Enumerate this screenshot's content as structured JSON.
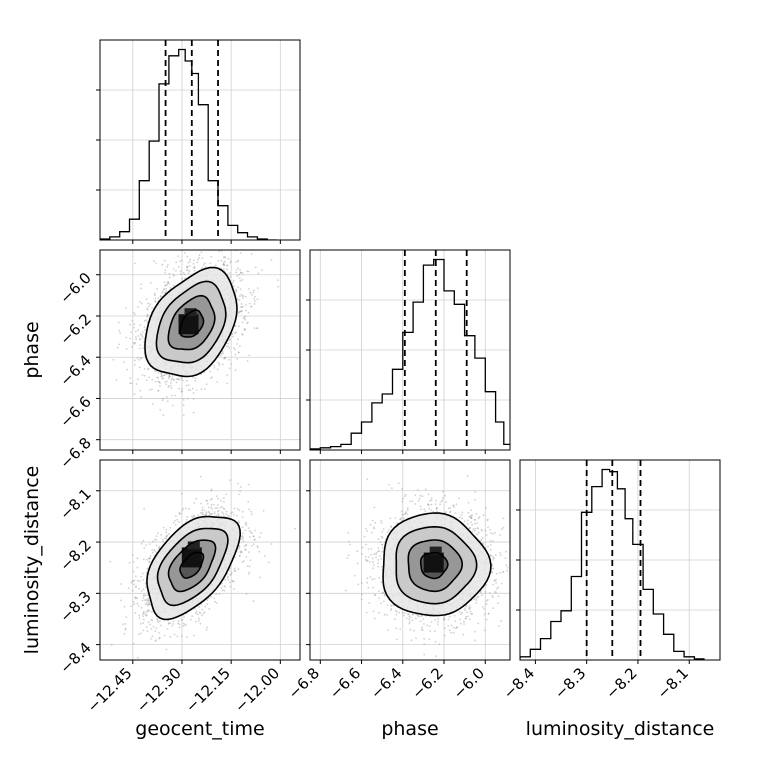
{
  "chart_data": {
    "type": "corner",
    "parameters": [
      "geocent_time",
      "phase",
      "luminosity_distance"
    ],
    "axis_labels": {
      "x": [
        "geocent_time",
        "phase",
        "luminosity_distance"
      ],
      "y": [
        "phase",
        "luminosity_distance"
      ]
    },
    "grid": true,
    "ranges": {
      "geocent_time": [
        -12.55,
        -11.94
      ],
      "phase": [
        -6.85,
        -5.88
      ],
      "luminosity_distance": [
        -8.43,
        -8.04
      ]
    },
    "ticks": {
      "geocent_time": {
        "values": [
          -12.45,
          -12.3,
          -12.15,
          -12.0
        ],
        "labels": [
          "−12.45",
          "−12.30",
          "−12.15",
          "−12.00"
        ]
      },
      "phase": {
        "values": [
          -6.8,
          -6.6,
          -6.4,
          -6.2,
          -6.0
        ],
        "labels": [
          "−6.8",
          "−6.6",
          "−6.4",
          "−6.2",
          "−6.0"
        ]
      },
      "luminosity_distance": {
        "values": [
          -8.4,
          -8.3,
          -8.2,
          -8.1
        ],
        "labels": [
          "−8.4",
          "−8.3",
          "−8.2",
          "−8.1"
        ]
      }
    },
    "quantiles": {
      "geocent_time": [
        -12.35,
        -12.27,
        -12.19
      ],
      "phase": [
        -6.39,
        -6.24,
        -6.09
      ],
      "luminosity_distance": [
        -8.3,
        -8.25,
        -8.195
      ]
    },
    "histograms": {
      "geocent_time": {
        "edges": [
          -12.55,
          -12.52,
          -12.49,
          -12.46,
          -12.43,
          -12.4,
          -12.37,
          -12.34,
          -12.31,
          -12.29,
          -12.27,
          -12.25,
          -12.22,
          -12.19,
          -12.16,
          -12.13,
          -12.1,
          -12.07,
          -12.04,
          -12.01
        ],
        "counts": [
          1,
          3,
          8,
          20,
          57,
          95,
          150,
          177,
          183,
          172,
          160,
          130,
          57,
          33,
          14,
          7,
          3,
          1,
          0
        ]
      },
      "phase": {
        "edges": [
          -6.85,
          -6.8,
          -6.75,
          -6.7,
          -6.65,
          -6.6,
          -6.55,
          -6.5,
          -6.45,
          -6.4,
          -6.35,
          -6.3,
          -6.25,
          -6.2,
          -6.15,
          -6.1,
          -6.05,
          -6.0,
          -5.95,
          -5.91,
          -5.88
        ],
        "counts": [
          1,
          2,
          3,
          5,
          15,
          25,
          42,
          50,
          72,
          105,
          132,
          165,
          170,
          142,
          130,
          102,
          82,
          52,
          25,
          5
        ]
      },
      "luminosity_distance": {
        "edges": [
          -8.43,
          -8.41,
          -8.39,
          -8.37,
          -8.35,
          -8.33,
          -8.31,
          -8.29,
          -8.27,
          -8.255,
          -8.24,
          -8.225,
          -8.21,
          -8.19,
          -8.17,
          -8.15,
          -8.13,
          -8.11,
          -8.09,
          -8.07
        ],
        "counts": [
          3,
          10,
          20,
          36,
          46,
          78,
          138,
          162,
          178,
          176,
          160,
          132,
          108,
          66,
          43,
          24,
          8,
          3,
          1
        ]
      }
    },
    "pairs": [
      {
        "x": "geocent_time",
        "y": "phase",
        "mean": [
          -12.27,
          -6.24
        ],
        "sd": [
          0.07,
          0.13
        ],
        "rho": 0.35,
        "peak": [
          -12.28,
          -6.24
        ]
      },
      {
        "x": "geocent_time",
        "y": "luminosity_distance",
        "mean": [
          -12.27,
          -8.245
        ],
        "sd": [
          0.07,
          0.05
        ],
        "rho": 0.5,
        "peak": [
          -12.27,
          -8.23
        ]
      },
      {
        "x": "phase",
        "y": "luminosity_distance",
        "mean": [
          -6.25,
          -8.245
        ],
        "sd": [
          0.13,
          0.05
        ],
        "rho": 0.0,
        "peak": [
          -6.25,
          -8.24
        ]
      }
    ],
    "levels_sigma": [
      0.5,
      1.0,
      1.5,
      2.0
    ]
  }
}
